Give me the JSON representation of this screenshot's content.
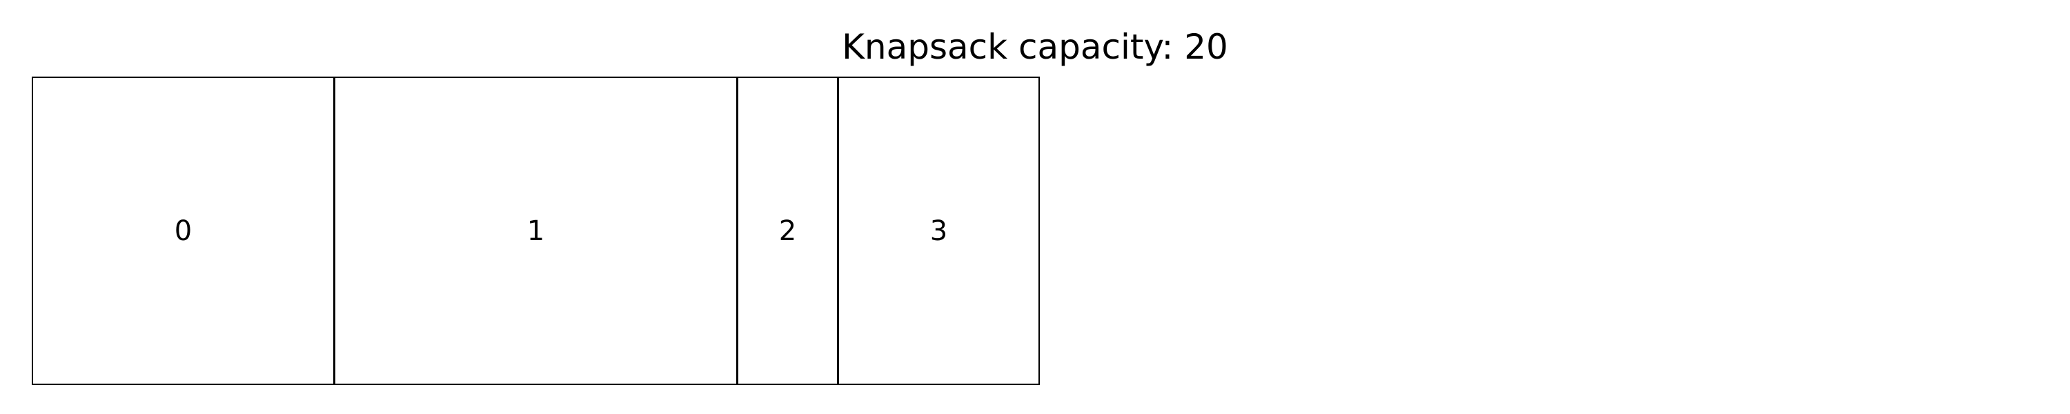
{
  "title": "Knapsack capacity: 20",
  "knapsack": {
    "capacity": 20,
    "items": [
      {
        "label": "0",
        "size": 6
      },
      {
        "label": "1",
        "size": 8
      },
      {
        "label": "2",
        "size": 2
      },
      {
        "label": "3",
        "size": 4
      }
    ]
  }
}
